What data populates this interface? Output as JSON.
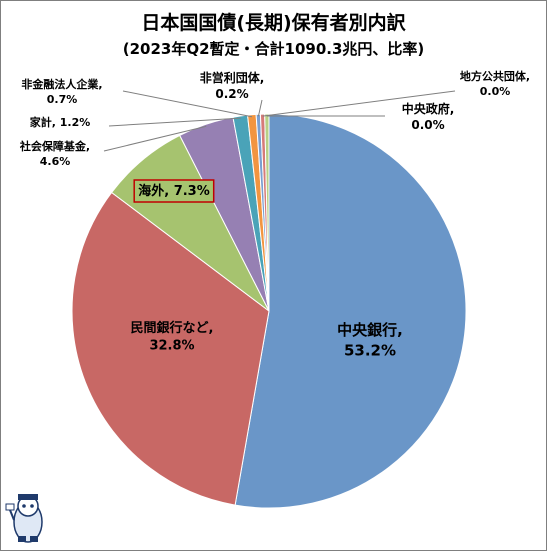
{
  "chart_data": {
    "type": "pie",
    "title": "日本国国債(長期)保有者別内訳",
    "subtitle": "(2023年Q2暫定・合計1090.3兆円、比率)",
    "start_angle_deg": 0,
    "direction": "clockwise",
    "slices": [
      {
        "name": "中央銀行",
        "value": 53.2,
        "display": "中央銀行,",
        "pct_label": "53.2%",
        "color": "#6a96c8"
      },
      {
        "name": "民間銀行など",
        "value": 32.8,
        "display": "民間銀行など,",
        "pct_label": "32.8%",
        "color": "#c86865"
      },
      {
        "name": "海外",
        "value": 7.3,
        "display": "海外, 7.3%",
        "pct_label": "",
        "color": "#a6c36f"
      },
      {
        "name": "社会保障基金",
        "value": 4.6,
        "display": "社会保障基金,",
        "pct_label": "4.6%",
        "color": "#9680b3"
      },
      {
        "name": "家計",
        "value": 1.2,
        "display": "家計, 1.2%",
        "pct_label": "",
        "color": "#4aa3b8"
      },
      {
        "name": "非金融法人企業",
        "value": 0.7,
        "display": "非金融法人企業,",
        "pct_label": "0.7%",
        "color": "#f29540"
      },
      {
        "name": "非営利団体",
        "value": 0.2,
        "display": "非営利団体,",
        "pct_label": "0.2%",
        "color": "#7a9fd0"
      },
      {
        "name": "地方公共団体",
        "value": 0.0,
        "display": "地方公共団体,",
        "pct_label": "0.0%",
        "color": "#d67b78"
      },
      {
        "name": "中央政府",
        "value": 0.0,
        "display": "中央政府,",
        "pct_label": "0.0%",
        "color": "#b7d086"
      }
    ]
  },
  "highlight_color": "#c00000",
  "mascot_icon": "mascot-icon"
}
